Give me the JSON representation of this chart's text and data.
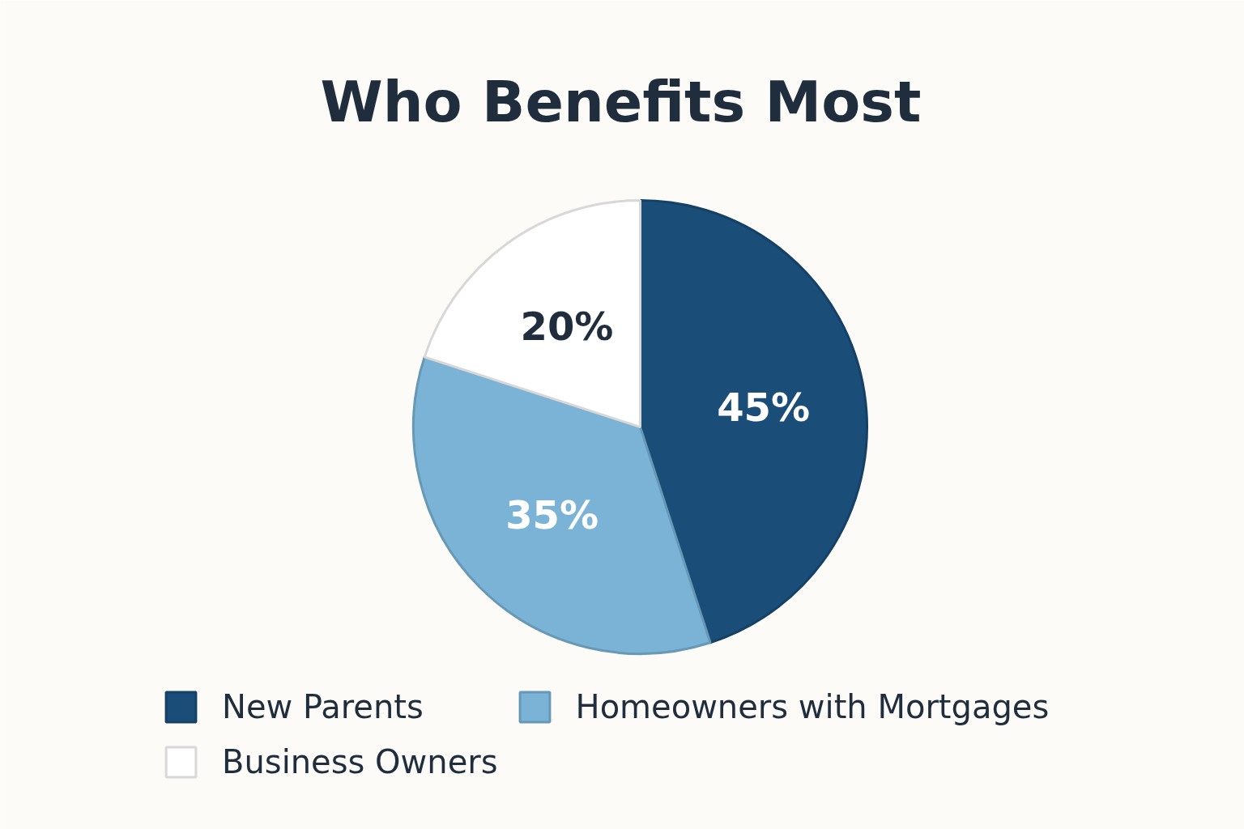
{
  "chart_data": {
    "type": "pie",
    "title": "Who Benefits Most",
    "categories": [
      "New Parents",
      "Homeowners with Mortgages",
      "Business Owners"
    ],
    "values": [
      45,
      35,
      20
    ],
    "colors": [
      "#1a4d78",
      "#7ab3d6",
      "#ffffff"
    ],
    "value_labels": [
      "45%",
      "35%",
      "20%"
    ],
    "legend": "bottom"
  }
}
